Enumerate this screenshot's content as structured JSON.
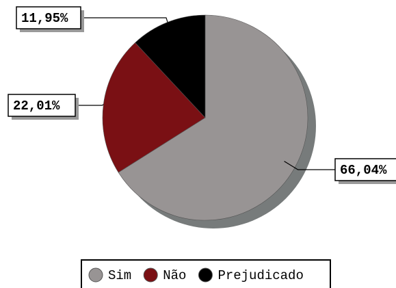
{
  "chart_data": {
    "type": "pie",
    "categories": [
      "Sim",
      "Não",
      "Prejudicado"
    ],
    "values": [
      66.04,
      22.01,
      11.95
    ],
    "value_labels": [
      "66,04%",
      "22,01%",
      "11,95%"
    ],
    "colors": [
      "#989494",
      "#7a1014",
      "#000000"
    ],
    "legend": "bottom"
  }
}
